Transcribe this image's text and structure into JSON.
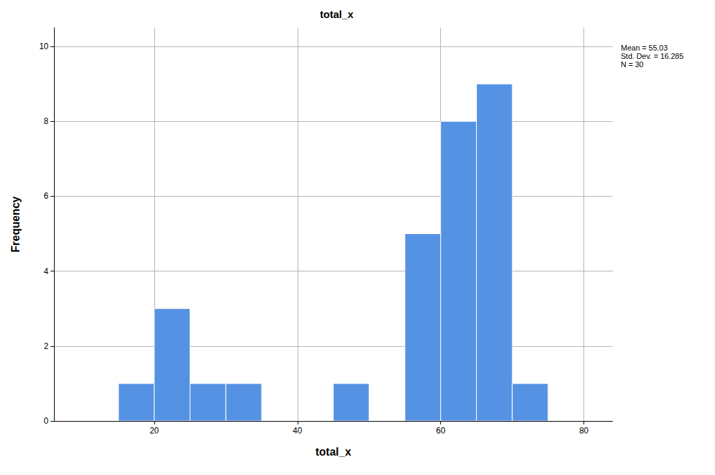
{
  "chart_data": {
    "type": "histogram",
    "title": "total_x",
    "x_label": "total_x",
    "y_label": "Frequency",
    "bins": [
      15,
      20,
      25,
      30,
      35,
      40,
      45,
      50,
      55,
      60,
      65,
      70,
      75
    ],
    "counts": [
      1,
      3,
      1,
      1,
      0,
      0,
      1,
      0,
      5,
      8,
      9,
      1
    ],
    "color": "#5592e3",
    "xlim": [
      6,
      84
    ],
    "xticks": [
      20,
      40,
      60,
      80
    ],
    "ylim": [
      0,
      10.5
    ],
    "yticks": [
      0,
      2,
      4,
      6,
      8,
      10
    ],
    "grid": true,
    "annotations": [
      "Mean = 55.03",
      "Std. Dev. = 16.285",
      "N = 30"
    ]
  }
}
